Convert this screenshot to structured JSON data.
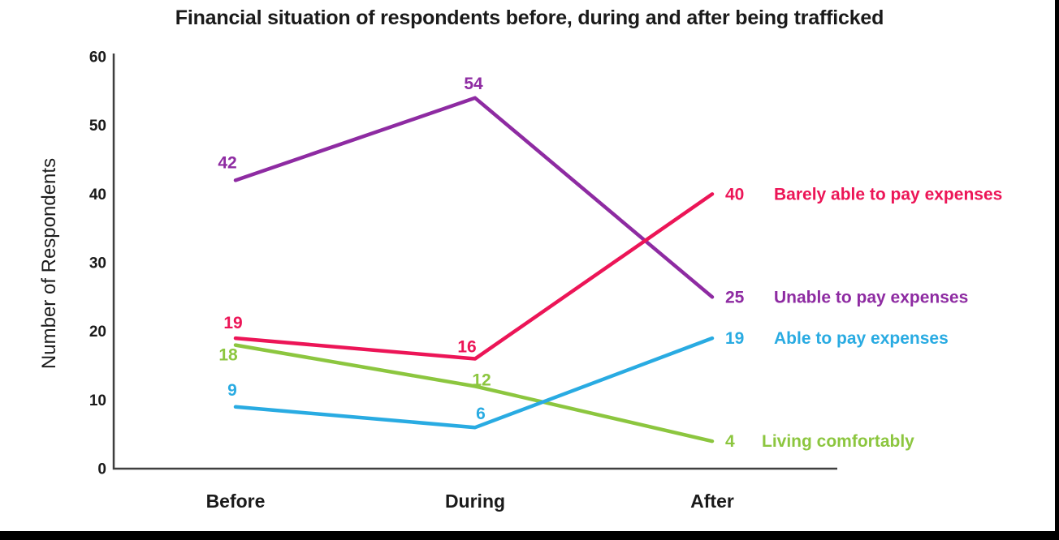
{
  "chart_data": {
    "type": "line",
    "title": "Financial situation of respondents before, during and after being trafficked",
    "categories": [
      "Before",
      "During",
      "After"
    ],
    "series": [
      {
        "name": "Unable to pay expenses",
        "values": [
          42,
          54,
          25
        ],
        "color": "#8E2BA2"
      },
      {
        "name": "Living comfortably",
        "values": [
          18,
          12,
          4
        ],
        "color": "#8CC63F"
      },
      {
        "name": "Barely able to pay expenses",
        "values": [
          19,
          16,
          40
        ],
        "color": "#EC1557"
      },
      {
        "name": "Able to pay expenses",
        "values": [
          9,
          6,
          19
        ],
        "color": "#29ABE2"
      }
    ],
    "xlabel": "",
    "ylabel": "Number of Respondents",
    "ylim": [
      0,
      60
    ],
    "y_ticks": [
      0,
      10,
      20,
      30,
      40,
      50,
      60
    ],
    "grid": false,
    "data_labels": true,
    "legend_position": "right-of-line-end",
    "axis_color": "#3F3F3F",
    "text_color": "#1a1a1a"
  }
}
